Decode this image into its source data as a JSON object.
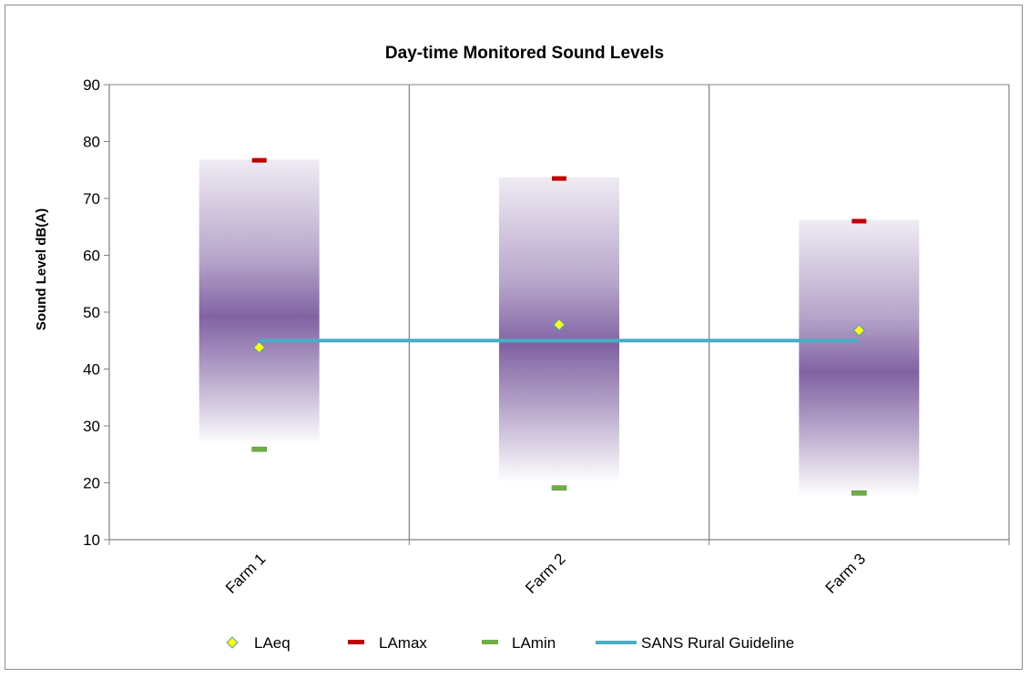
{
  "chart_data": {
    "type": "line",
    "title": "Day-time Monitored Sound  Levels",
    "xlabel": "",
    "ylabel": "Sound Level dB(A)",
    "categories": [
      "Farm 1",
      "Farm 2",
      "Farm 3"
    ],
    "ylim": [
      10,
      90
    ],
    "yticks": [
      10,
      20,
      30,
      40,
      50,
      60,
      70,
      80,
      90
    ],
    "grid": "vertical category separators",
    "range_bands": [
      {
        "category": "Farm 1",
        "low": 26.5,
        "high": 76.8
      },
      {
        "category": "Farm 2",
        "low": 20,
        "high": 73.7
      },
      {
        "category": "Farm 3",
        "low": 17.5,
        "high": 66.2
      }
    ],
    "series": [
      {
        "name": "LAeq",
        "marker": "diamond",
        "values": [
          43.8,
          47.8,
          46.8
        ]
      },
      {
        "name": "LAmax",
        "marker": "dash",
        "values": [
          76.7,
          73.5,
          66.0
        ]
      },
      {
        "name": "LAmin",
        "marker": "dash",
        "values": [
          25.9,
          19.1,
          18.2
        ]
      },
      {
        "name": "SANS Rural Guideline",
        "marker": "line",
        "values": [
          45,
          45,
          45
        ]
      }
    ],
    "legend": "bottom",
    "colors": {
      "LAeq_fill": "#ffff00",
      "LAeq_edge": "#4f9fc4",
      "LAmax": "#c00000",
      "LAmin": "#70ad47",
      "guideline": "#4bacc6",
      "band": "#7a5a9e",
      "gridline": "#808080"
    }
  }
}
